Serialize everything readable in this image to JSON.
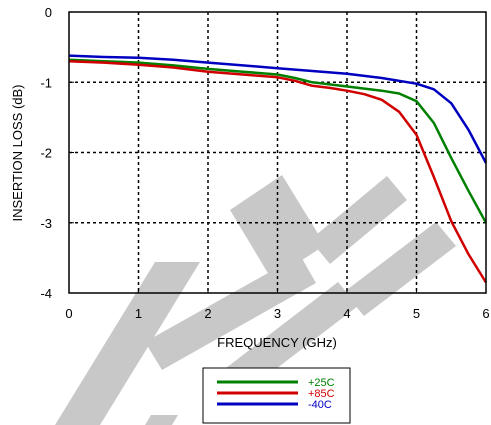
{
  "chart_data": {
    "type": "line",
    "xlabel": "FREQUENCY (GHz)",
    "ylabel": "INSERTION LOSS (dB)",
    "xlim": [
      0,
      6
    ],
    "ylim": [
      -4,
      0
    ],
    "xticks": [
      "0",
      "1",
      "2",
      "3",
      "4",
      "5",
      "6"
    ],
    "yticks": [
      "0",
      "-1",
      "-2",
      "-3",
      "-4"
    ],
    "grid": "dashed",
    "legend_position": "below-plot",
    "series": [
      {
        "name": "+25C",
        "color": "#008000",
        "x": [
          0,
          0.5,
          1,
          1.5,
          2,
          2.5,
          3,
          3.25,
          3.5,
          3.75,
          4,
          4.25,
          4.5,
          4.75,
          5,
          5.25,
          5.5,
          5.75,
          6
        ],
        "y": [
          -0.68,
          -0.7,
          -0.72,
          -0.76,
          -0.81,
          -0.85,
          -0.89,
          -0.94,
          -1.0,
          -1.03,
          -1.06,
          -1.09,
          -1.12,
          -1.16,
          -1.27,
          -1.58,
          -2.08,
          -2.55,
          -3.0
        ]
      },
      {
        "name": "+85C",
        "color": "#d00000",
        "x": [
          0,
          0.5,
          1,
          1.5,
          2,
          2.5,
          3,
          3.25,
          3.5,
          3.75,
          4,
          4.25,
          4.5,
          4.75,
          5,
          5.25,
          5.5,
          5.75,
          6
        ],
        "y": [
          -0.7,
          -0.72,
          -0.75,
          -0.79,
          -0.85,
          -0.89,
          -0.93,
          -0.98,
          -1.05,
          -1.08,
          -1.12,
          -1.17,
          -1.25,
          -1.42,
          -1.75,
          -2.35,
          -2.98,
          -3.45,
          -3.85
        ]
      },
      {
        "name": "-40C",
        "color": "#0000c0",
        "x": [
          0,
          0.5,
          1,
          1.5,
          2,
          2.5,
          3,
          3.5,
          4,
          4.5,
          5,
          5.25,
          5.5,
          5.75,
          6
        ],
        "y": [
          -0.62,
          -0.64,
          -0.65,
          -0.68,
          -0.72,
          -0.76,
          -0.8,
          -0.84,
          -0.88,
          -0.94,
          -1.02,
          -1.1,
          -1.3,
          -1.68,
          -2.15
        ]
      }
    ]
  }
}
